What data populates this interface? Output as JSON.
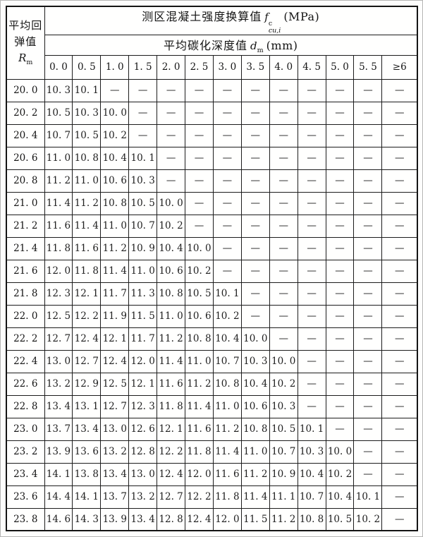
{
  "page": {
    "background": "#fdfdfc",
    "frame_color": "#b5b5b5",
    "grid_line_color": "#1c1c1c"
  },
  "table": {
    "corner_header": {
      "line1": "平均回",
      "line2": "弹值",
      "symbol_base": "R",
      "symbol_sub": "m"
    },
    "title": {
      "prefix": "测区混凝土强度换算值",
      "symbol_base": "f",
      "symbol_sup": "c",
      "symbol_sub": "cu,i",
      "suffix": "(MPa)"
    },
    "subtitle": {
      "prefix": "平均碳化深度值",
      "symbol_base": "d",
      "symbol_sub": "m",
      "suffix": "(mm)"
    },
    "column_headers": [
      "0. 0",
      "0. 5",
      "1. 0",
      "1. 5",
      "2. 0",
      "2. 5",
      "3. 0",
      "3. 5",
      "4. 0",
      "4. 5",
      "5. 0",
      "5. 5",
      "≥6"
    ],
    "empty_marker": "—",
    "rows": [
      {
        "label": "20. 0",
        "cells": [
          "10. 3",
          "10. 1",
          "—",
          "—",
          "—",
          "—",
          "—",
          "—",
          "—",
          "—",
          "—",
          "—",
          "—"
        ]
      },
      {
        "label": "20. 2",
        "cells": [
          "10. 5",
          "10. 3",
          "10. 0",
          "—",
          "—",
          "—",
          "—",
          "—",
          "—",
          "—",
          "—",
          "—",
          "—"
        ]
      },
      {
        "label": "20. 4",
        "cells": [
          "10. 7",
          "10. 5",
          "10. 2",
          "—",
          "—",
          "—",
          "—",
          "—",
          "—",
          "—",
          "—",
          "—",
          "—"
        ]
      },
      {
        "label": "20. 6",
        "cells": [
          "11. 0",
          "10. 8",
          "10. 4",
          "10. 1",
          "—",
          "—",
          "—",
          "—",
          "—",
          "—",
          "—",
          "—",
          "—"
        ]
      },
      {
        "label": "20. 8",
        "cells": [
          "11. 2",
          "11. 0",
          "10. 6",
          "10. 3",
          "—",
          "—",
          "—",
          "—",
          "—",
          "—",
          "—",
          "—",
          "—"
        ]
      },
      {
        "label": "21. 0",
        "cells": [
          "11. 4",
          "11. 2",
          "10. 8",
          "10. 5",
          "10. 0",
          "—",
          "—",
          "—",
          "—",
          "—",
          "—",
          "—",
          "—"
        ]
      },
      {
        "label": "21. 2",
        "cells": [
          "11. 6",
          "11. 4",
          "11. 0",
          "10. 7",
          "10. 2",
          "—",
          "—",
          "—",
          "—",
          "—",
          "—",
          "—",
          "—"
        ]
      },
      {
        "label": "21. 4",
        "cells": [
          "11. 8",
          "11. 6",
          "11. 2",
          "10. 9",
          "10. 4",
          "10. 0",
          "—",
          "—",
          "—",
          "—",
          "—",
          "—",
          "—"
        ]
      },
      {
        "label": "21. 6",
        "cells": [
          "12. 0",
          "11. 8",
          "11. 4",
          "11. 0",
          "10. 6",
          "10. 2",
          "—",
          "—",
          "—",
          "—",
          "—",
          "—",
          "—"
        ]
      },
      {
        "label": "21. 8",
        "cells": [
          "12. 3",
          "12. 1",
          "11. 7",
          "11. 3",
          "10. 8",
          "10. 5",
          "10. 1",
          "—",
          "—",
          "—",
          "—",
          "—",
          "—"
        ]
      },
      {
        "label": "22. 0",
        "cells": [
          "12. 5",
          "12. 2",
          "11. 9",
          "11. 5",
          "11. 0",
          "10. 6",
          "10. 2",
          "—",
          "—",
          "—",
          "—",
          "—",
          "—"
        ]
      },
      {
        "label": "22. 2",
        "cells": [
          "12. 7",
          "12. 4",
          "12. 1",
          "11. 7",
          "11. 2",
          "10. 8",
          "10. 4",
          "10. 0",
          "—",
          "—",
          "—",
          "—",
          "—"
        ]
      },
      {
        "label": "22. 4",
        "cells": [
          "13. 0",
          "12. 7",
          "12. 4",
          "12. 0",
          "11. 4",
          "11. 0",
          "10. 7",
          "10. 3",
          "10. 0",
          "—",
          "—",
          "—",
          "—"
        ]
      },
      {
        "label": "22. 6",
        "cells": [
          "13. 2",
          "12. 9",
          "12. 5",
          "12. 1",
          "11. 6",
          "11. 2",
          "10. 8",
          "10. 4",
          "10. 2",
          "—",
          "—",
          "—",
          "—"
        ]
      },
      {
        "label": "22. 8",
        "cells": [
          "13. 4",
          "13. 1",
          "12. 7",
          "12. 3",
          "11. 8",
          "11. 4",
          "11. 0",
          "10. 6",
          "10. 3",
          "—",
          "—",
          "—",
          "—"
        ]
      },
      {
        "label": "23. 0",
        "cells": [
          "13. 7",
          "13. 4",
          "13. 0",
          "12. 6",
          "12. 1",
          "11. 6",
          "11. 2",
          "10. 8",
          "10. 5",
          "10. 1",
          "—",
          "—",
          "—"
        ]
      },
      {
        "label": "23. 2",
        "cells": [
          "13. 9",
          "13. 6",
          "13. 2",
          "12. 8",
          "12. 2",
          "11. 8",
          "11. 4",
          "11. 0",
          "10. 7",
          "10. 3",
          "10. 0",
          "—",
          "—"
        ]
      },
      {
        "label": "23. 4",
        "cells": [
          "14. 1",
          "13. 8",
          "13. 4",
          "13. 0",
          "12. 4",
          "12. 0",
          "11. 6",
          "11. 2",
          "10. 9",
          "10. 4",
          "10. 2",
          "—",
          "—"
        ]
      },
      {
        "label": "23. 6",
        "cells": [
          "14. 4",
          "14. 1",
          "13. 7",
          "13. 2",
          "12. 7",
          "12. 2",
          "11. 8",
          "11. 4",
          "11. 1",
          "10. 7",
          "10. 4",
          "10. 1",
          "—"
        ]
      },
      {
        "label": "23. 8",
        "cells": [
          "14. 6",
          "14. 3",
          "13. 9",
          "13. 4",
          "12. 8",
          "12. 4",
          "12. 0",
          "11. 5",
          "11. 2",
          "10. 8",
          "10. 5",
          "10. 2",
          "—"
        ]
      }
    ]
  }
}
